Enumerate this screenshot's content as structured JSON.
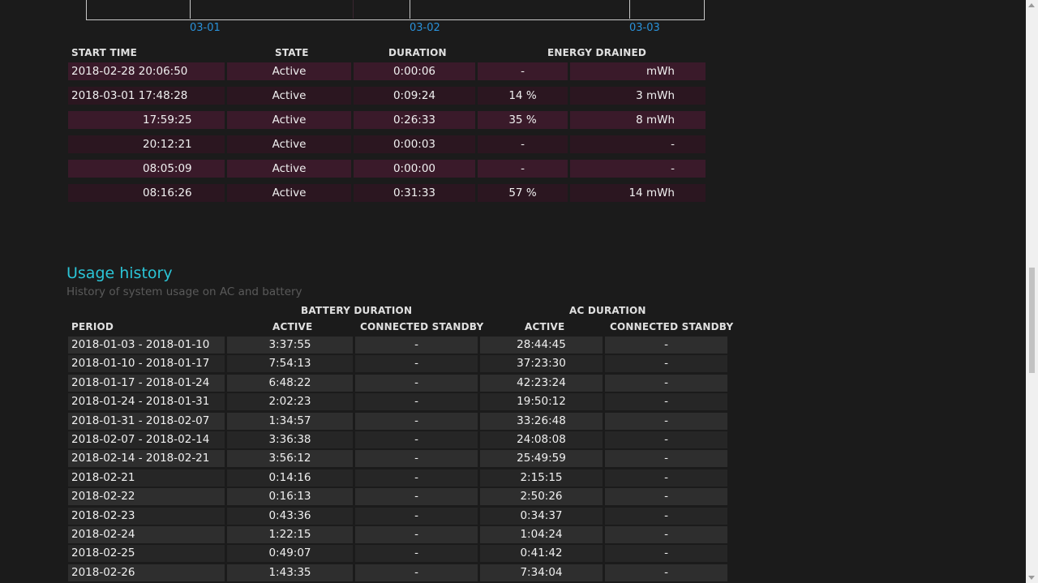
{
  "chart": {
    "ticks": [
      "03-01",
      "03-02",
      "03-03"
    ]
  },
  "active_sessions": {
    "headers": {
      "start_time": "START TIME",
      "state": "STATE",
      "duration": "DURATION",
      "energy_drained": "ENERGY DRAINED"
    },
    "rows": [
      {
        "start": "2018-02-28  20:06:50",
        "state": "Active",
        "duration": "0:00:06",
        "percent": "-",
        "energy": "mWh"
      },
      {
        "start": "2018-03-01  17:48:28",
        "state": "Active",
        "duration": "0:09:24",
        "percent": "14 %",
        "energy": "3 mWh"
      },
      {
        "start": "17:59:25",
        "state": "Active",
        "duration": "0:26:33",
        "percent": "35 %",
        "energy": "8 mWh"
      },
      {
        "start": "20:12:21",
        "state": "Active",
        "duration": "0:00:03",
        "percent": "-",
        "energy": "-"
      },
      {
        "start": "08:05:09",
        "state": "Active",
        "duration": "0:00:00",
        "percent": "-",
        "energy": "-"
      },
      {
        "start": "08:16:26",
        "state": "Active",
        "duration": "0:31:33",
        "percent": "57 %",
        "energy": "14 mWh"
      }
    ]
  },
  "usage_history": {
    "title": "Usage history",
    "subtitle": "History of system usage on AC and battery",
    "group_headers": {
      "battery": "BATTERY DURATION",
      "ac": "AC DURATION"
    },
    "headers": {
      "period": "PERIOD",
      "battery_active": "ACTIVE",
      "battery_standby": "CONNECTED STANDBY",
      "ac_active": "ACTIVE",
      "ac_standby": "CONNECTED STANDBY"
    },
    "rows": [
      {
        "period": "2018-01-03 - 2018-01-10",
        "b_active": "3:37:55",
        "b_standby": "-",
        "ac_active": "28:44:45",
        "ac_standby": "-"
      },
      {
        "period": "2018-01-10 - 2018-01-17",
        "b_active": "7:54:13",
        "b_standby": "-",
        "ac_active": "37:23:30",
        "ac_standby": "-"
      },
      {
        "period": "2018-01-17 - 2018-01-24",
        "b_active": "6:48:22",
        "b_standby": "-",
        "ac_active": "42:23:24",
        "ac_standby": "-"
      },
      {
        "period": "2018-01-24 - 2018-01-31",
        "b_active": "2:02:23",
        "b_standby": "-",
        "ac_active": "19:50:12",
        "ac_standby": "-"
      },
      {
        "period": "2018-01-31 - 2018-02-07",
        "b_active": "1:34:57",
        "b_standby": "-",
        "ac_active": "33:26:48",
        "ac_standby": "-"
      },
      {
        "period": "2018-02-07 - 2018-02-14",
        "b_active": "3:36:38",
        "b_standby": "-",
        "ac_active": "24:08:08",
        "ac_standby": "-"
      },
      {
        "period": "2018-02-14 - 2018-02-21",
        "b_active": "3:56:12",
        "b_standby": "-",
        "ac_active": "25:49:59",
        "ac_standby": "-"
      },
      {
        "period": "2018-02-21",
        "b_active": "0:14:16",
        "b_standby": "-",
        "ac_active": "2:15:15",
        "ac_standby": "-"
      },
      {
        "period": "2018-02-22",
        "b_active": "0:16:13",
        "b_standby": "-",
        "ac_active": "2:50:26",
        "ac_standby": "-"
      },
      {
        "period": "2018-02-23",
        "b_active": "0:43:36",
        "b_standby": "-",
        "ac_active": "0:34:37",
        "ac_standby": "-"
      },
      {
        "period": "2018-02-24",
        "b_active": "1:22:15",
        "b_standby": "-",
        "ac_active": "1:04:24",
        "ac_standby": "-"
      },
      {
        "period": "2018-02-25",
        "b_active": "0:49:07",
        "b_standby": "-",
        "ac_active": "0:41:42",
        "ac_standby": "-"
      },
      {
        "period": "2018-02-26",
        "b_active": "1:43:35",
        "b_standby": "-",
        "ac_active": "7:34:04",
        "ac_standby": "-"
      }
    ]
  }
}
